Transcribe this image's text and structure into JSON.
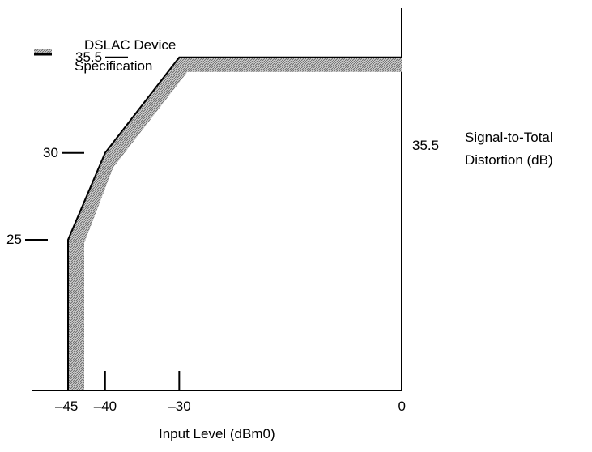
{
  "chart_data": {
    "type": "line",
    "title": "",
    "xlabel": "Input Level (dBm0)",
    "ylabel": "Signal-to-Total Distortion (dB)",
    "ylabel_lines": [
      "Signal-to-Total",
      "Distortion (dB)"
    ],
    "xlim": [
      -45,
      0
    ],
    "x_ticks": [
      {
        "value": -45,
        "label": "–45"
      },
      {
        "value": -40,
        "label": "–40"
      },
      {
        "value": -30,
        "label": "–30"
      },
      {
        "value": 0,
        "label": "0"
      }
    ],
    "y_ticks": [
      {
        "value": 35.5,
        "label": "35.5"
      },
      {
        "value": 30,
        "label": "30"
      },
      {
        "value": 25,
        "label": "25"
      }
    ],
    "right_axis_label": "35.5",
    "series": [
      {
        "name": "DSLAC Device Specification",
        "x": [
          -45,
          -45,
          -40,
          -30,
          0
        ],
        "y": [
          0,
          25,
          30,
          35.5,
          35.5
        ]
      }
    ],
    "legend": {
      "lines": [
        "DSLAC Device",
        "Specification"
      ],
      "position": "top-left"
    },
    "grid": false,
    "colors": {
      "line": "#000000",
      "band": "#8a8a8a"
    }
  }
}
